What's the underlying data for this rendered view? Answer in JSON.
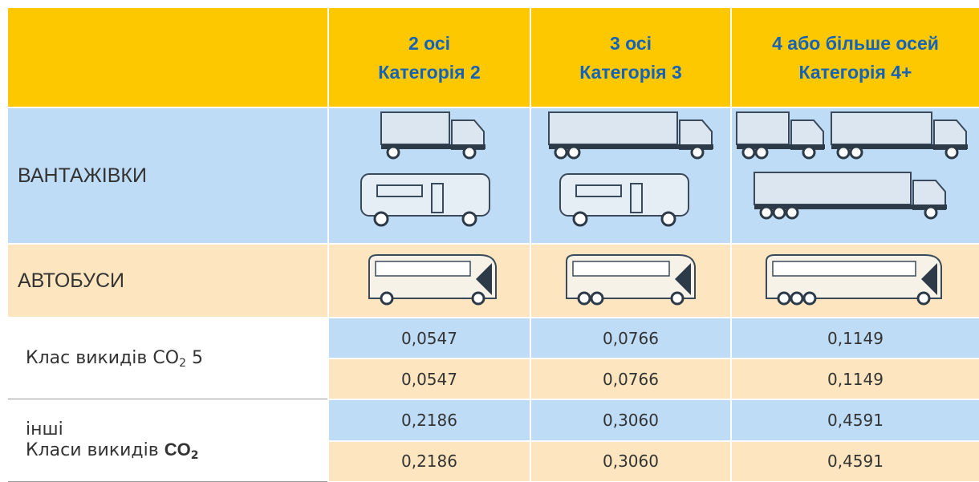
{
  "header": {
    "columns": [
      {
        "axles": "2 осі",
        "category": "Категорія 2"
      },
      {
        "axles": "3 осі",
        "category": "Категорія 3"
      },
      {
        "axles": "4 або більше осей",
        "category": "Категорія 4+"
      }
    ]
  },
  "vehicle_rows": [
    {
      "label": "ВАНТАЖІВКИ"
    },
    {
      "label": "АВТОБУСИ"
    }
  ],
  "emission_rows": [
    {
      "label": {
        "line1": "Клас викидів ",
        "formula": "CO",
        "subscript": "2",
        "suffix": " 5"
      },
      "rows": [
        [
          "0,0547",
          "0,0766",
          "0,1149"
        ],
        [
          "0,0547",
          "0,0766",
          "0,1149"
        ]
      ]
    },
    {
      "label": {
        "line0": "інші",
        "line1": "Класи викидів ",
        "formula": "CO",
        "subscript": "2"
      },
      "rows": [
        [
          "0,2186",
          "0,3060",
          "0,4591"
        ],
        [
          "0,2186",
          "0,3060",
          "0,4591"
        ]
      ]
    }
  ]
}
